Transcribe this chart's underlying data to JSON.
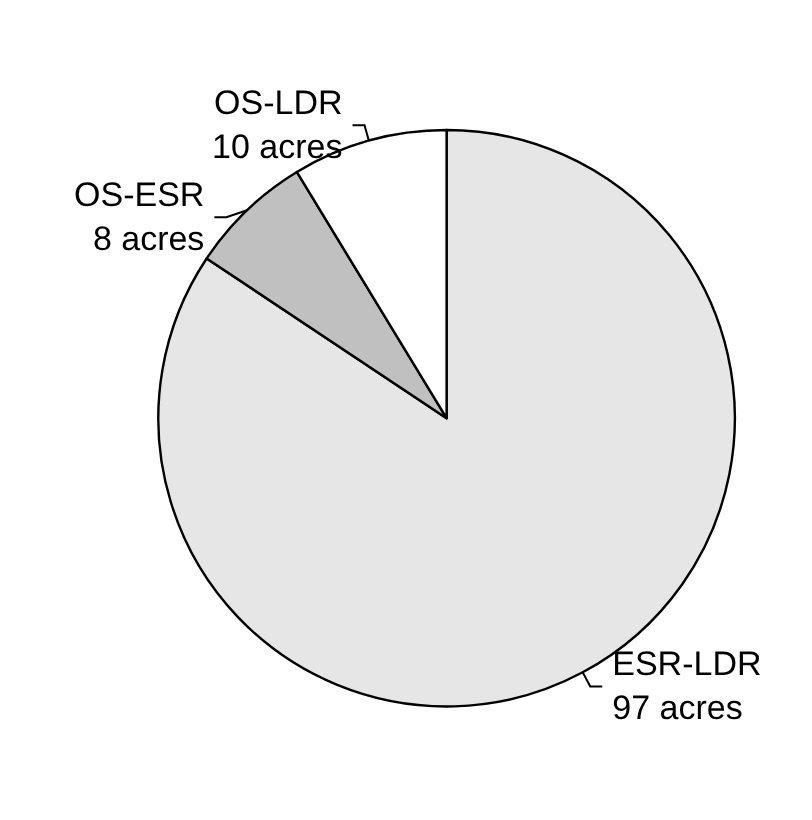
{
  "chart_data": {
    "type": "pie",
    "categories": [
      "ESR-LDR",
      "OS-ESR",
      "OS-LDR"
    ],
    "values": [
      97,
      8,
      10
    ],
    "value_labels": [
      "97 acres",
      "8 acres",
      "10 acres"
    ],
    "colors": [
      "#e6e6e6",
      "#c0c0c0",
      "#ffffff"
    ]
  }
}
